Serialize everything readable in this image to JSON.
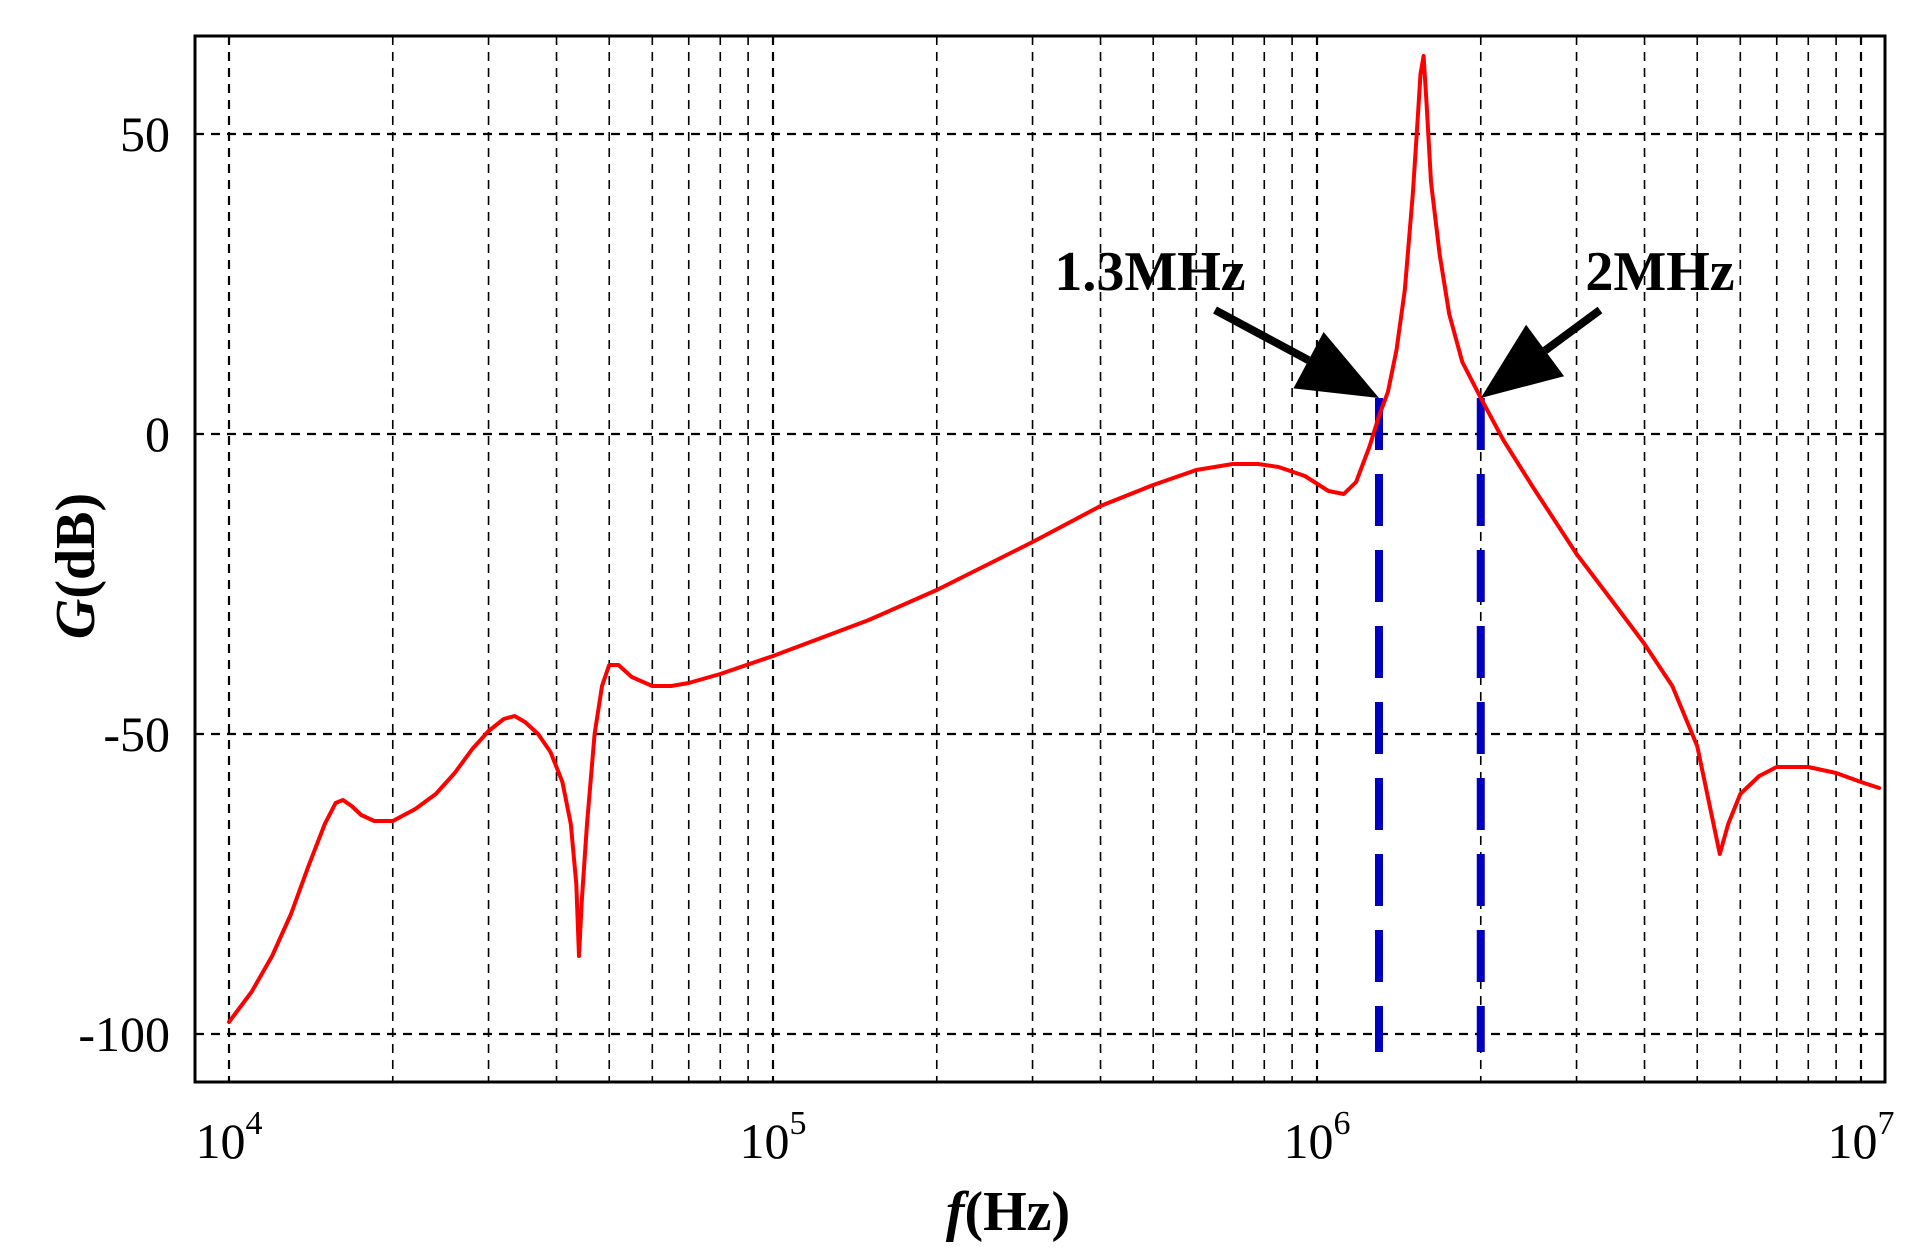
{
  "chart_data": {
    "type": "line",
    "xscale": "log",
    "xlim": [
      10000,
      11000000
    ],
    "ylim": [
      -100,
      67
    ],
    "grid": true,
    "xlabel": {
      "italic": "f",
      "rest": "(Hz)"
    },
    "ylabel": {
      "italic": "G",
      "rest": "(dB)"
    },
    "xticks": [
      {
        "value": 10000,
        "base": "10",
        "exp": "4"
      },
      {
        "value": 100000,
        "base": "10",
        "exp": "5"
      },
      {
        "value": 1000000,
        "base": "10",
        "exp": "6"
      },
      {
        "value": 10000000,
        "base": "10",
        "exp": "7"
      }
    ],
    "yticks": [
      {
        "value": 50,
        "label": "50"
      },
      {
        "value": 0,
        "label": "0"
      },
      {
        "value": -50,
        "label": "-50"
      },
      {
        "value": -100,
        "label": "-100"
      }
    ],
    "series": [
      {
        "color": "#ff0000",
        "points": [
          [
            10000,
            -98
          ],
          [
            11000,
            -93
          ],
          [
            12000,
            -87
          ],
          [
            13000,
            -80
          ],
          [
            14000,
            -72
          ],
          [
            15000,
            -65
          ],
          [
            15700,
            -61.5
          ],
          [
            16200,
            -61
          ],
          [
            16800,
            -62
          ],
          [
            17500,
            -63.5
          ],
          [
            18500,
            -64.5
          ],
          [
            20000,
            -64.5
          ],
          [
            22000,
            -62.5
          ],
          [
            24000,
            -60
          ],
          [
            26000,
            -56.5
          ],
          [
            28000,
            -52.5
          ],
          [
            30000,
            -49.5
          ],
          [
            32000,
            -47.5
          ],
          [
            33500,
            -47
          ],
          [
            35000,
            -48
          ],
          [
            37000,
            -50
          ],
          [
            39000,
            -53
          ],
          [
            41000,
            -58
          ],
          [
            42500,
            -65
          ],
          [
            43500,
            -75
          ],
          [
            44000,
            -87
          ],
          [
            44500,
            -78
          ],
          [
            45500,
            -65
          ],
          [
            47000,
            -50
          ],
          [
            48500,
            -42
          ],
          [
            50000,
            -38.5
          ],
          [
            52000,
            -38.5
          ],
          [
            55000,
            -40.5
          ],
          [
            60000,
            -42
          ],
          [
            65000,
            -42
          ],
          [
            70000,
            -41.5
          ],
          [
            80000,
            -40
          ],
          [
            100000,
            -37
          ],
          [
            150000,
            -31
          ],
          [
            200000,
            -26
          ],
          [
            300000,
            -18
          ],
          [
            400000,
            -12
          ],
          [
            500000,
            -8.5
          ],
          [
            600000,
            -6
          ],
          [
            700000,
            -5
          ],
          [
            780000,
            -5
          ],
          [
            850000,
            -5.5
          ],
          [
            950000,
            -7
          ],
          [
            1050000,
            -9.5
          ],
          [
            1120000,
            -10
          ],
          [
            1180000,
            -8
          ],
          [
            1250000,
            -2
          ],
          [
            1300000,
            3
          ],
          [
            1350000,
            7
          ],
          [
            1400000,
            14
          ],
          [
            1450000,
            24
          ],
          [
            1500000,
            40
          ],
          [
            1530000,
            52
          ],
          [
            1550000,
            60
          ],
          [
            1570000,
            63
          ],
          [
            1590000,
            55
          ],
          [
            1620000,
            42
          ],
          [
            1680000,
            30
          ],
          [
            1750000,
            20
          ],
          [
            1850000,
            12
          ],
          [
            2000000,
            6
          ],
          [
            2200000,
            -1
          ],
          [
            2500000,
            -9
          ],
          [
            3000000,
            -20
          ],
          [
            3500000,
            -28
          ],
          [
            4000000,
            -35
          ],
          [
            4500000,
            -42
          ],
          [
            5000000,
            -52
          ],
          [
            5300000,
            -63
          ],
          [
            5500000,
            -70
          ],
          [
            5700000,
            -65
          ],
          [
            6000000,
            -60
          ],
          [
            6500000,
            -57
          ],
          [
            7000000,
            -55.5
          ],
          [
            8000000,
            -55.5
          ],
          [
            9000000,
            -56.5
          ],
          [
            10000000,
            -58
          ],
          [
            10800000,
            -59
          ]
        ]
      }
    ],
    "markers": [
      {
        "x": 1300000,
        "y_top": 6,
        "y_bottom": -103,
        "color": "#0000c0"
      },
      {
        "x": 2000000,
        "y_top": 6,
        "y_bottom": -103,
        "color": "#0000c0"
      }
    ],
    "annotations": [
      {
        "text": "1.3MHz",
        "target_x": 1300000,
        "target_y": 6
      },
      {
        "text": "2MHz",
        "target_x": 2000000,
        "target_y": 6
      }
    ]
  }
}
